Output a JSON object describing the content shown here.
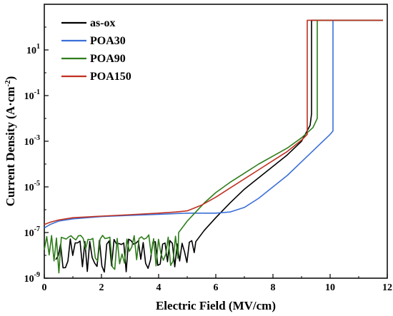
{
  "chart_data": {
    "type": "line",
    "title": "",
    "xlabel": "Electric Field (MV/cm)",
    "ylabel": "Current Density (A·cm⁻²)",
    "xlim": [
      0,
      12
    ],
    "ylim_log10": [
      -9,
      3
    ],
    "y_scale": "log",
    "grid": false,
    "legend_position": "top-left",
    "x_ticks": [
      "0",
      "2",
      "4",
      "6",
      "8",
      "10",
      "12"
    ],
    "y_ticks": [
      {
        "base": "10",
        "exp": "1",
        "log": 1
      },
      {
        "base": "10",
        "exp": "-1",
        "log": -1
      },
      {
        "base": "10",
        "exp": "-3",
        "log": -3
      },
      {
        "base": "10",
        "exp": "-5",
        "log": -5
      },
      {
        "base": "10",
        "exp": "-7",
        "log": -7
      },
      {
        "base": "10",
        "exp": "-9",
        "log": -9
      }
    ],
    "series": [
      {
        "name": "as-ox",
        "color": "#000000",
        "noise": {
          "x_start": 0.4,
          "x_end": 5.3,
          "low_floor": -8.5,
          "base": -7.4
        },
        "points": [
          [
            5.3,
            -7.4
          ],
          [
            5.6,
            -6.9
          ],
          [
            6.0,
            -6.35
          ],
          [
            6.5,
            -5.7
          ],
          [
            7.0,
            -5.1
          ],
          [
            7.5,
            -4.6
          ],
          [
            8.0,
            -4.1
          ],
          [
            8.5,
            -3.6
          ],
          [
            9.0,
            -3.0
          ],
          [
            9.3,
            -2.3
          ],
          [
            9.35,
            -1.8
          ],
          [
            9.35,
            2.3
          ],
          [
            11.85,
            2.3
          ]
        ]
      },
      {
        "name": "POA30",
        "color": "#3a6fd8",
        "points": [
          [
            0.0,
            -6.8
          ],
          [
            0.2,
            -6.65
          ],
          [
            0.5,
            -6.5
          ],
          [
            1.0,
            -6.4
          ],
          [
            2.0,
            -6.3
          ],
          [
            3.0,
            -6.25
          ],
          [
            4.0,
            -6.2
          ],
          [
            5.0,
            -6.15
          ],
          [
            6.0,
            -6.15
          ],
          [
            6.5,
            -6.1
          ],
          [
            7.0,
            -5.9
          ],
          [
            7.5,
            -5.5
          ],
          [
            8.0,
            -5.0
          ],
          [
            8.5,
            -4.5
          ],
          [
            9.0,
            -3.9
          ],
          [
            9.5,
            -3.3
          ],
          [
            10.0,
            -2.7
          ],
          [
            10.1,
            -2.55
          ],
          [
            10.1,
            2.3
          ],
          [
            11.85,
            2.3
          ]
        ]
      },
      {
        "name": "POA90",
        "color": "#2e7d1a",
        "noise": {
          "x_start": 0.0,
          "x_end": 4.7,
          "low_floor": -8.4,
          "base": -7.2
        },
        "points": [
          [
            4.7,
            -7.0
          ],
          [
            5.0,
            -6.5
          ],
          [
            5.3,
            -6.1
          ],
          [
            5.6,
            -5.7
          ],
          [
            6.0,
            -5.25
          ],
          [
            6.5,
            -4.8
          ],
          [
            7.0,
            -4.4
          ],
          [
            7.5,
            -4.0
          ],
          [
            8.0,
            -3.65
          ],
          [
            8.5,
            -3.3
          ],
          [
            9.0,
            -2.85
          ],
          [
            9.4,
            -2.4
          ],
          [
            9.55,
            -2.0
          ],
          [
            9.55,
            2.3
          ],
          [
            11.85,
            2.3
          ]
        ]
      },
      {
        "name": "POA150",
        "color": "#c03020",
        "points": [
          [
            0.0,
            -6.65
          ],
          [
            0.2,
            -6.55
          ],
          [
            0.5,
            -6.45
          ],
          [
            1.0,
            -6.35
          ],
          [
            2.0,
            -6.28
          ],
          [
            3.0,
            -6.22
          ],
          [
            4.0,
            -6.15
          ],
          [
            4.6,
            -6.1
          ],
          [
            5.0,
            -6.05
          ],
          [
            5.5,
            -5.8
          ],
          [
            6.0,
            -5.45
          ],
          [
            6.5,
            -5.05
          ],
          [
            7.0,
            -4.65
          ],
          [
            7.5,
            -4.25
          ],
          [
            8.0,
            -3.85
          ],
          [
            8.5,
            -3.45
          ],
          [
            9.0,
            -2.95
          ],
          [
            9.2,
            -2.7
          ],
          [
            9.2,
            2.3
          ],
          [
            11.85,
            2.3
          ]
        ]
      }
    ]
  }
}
